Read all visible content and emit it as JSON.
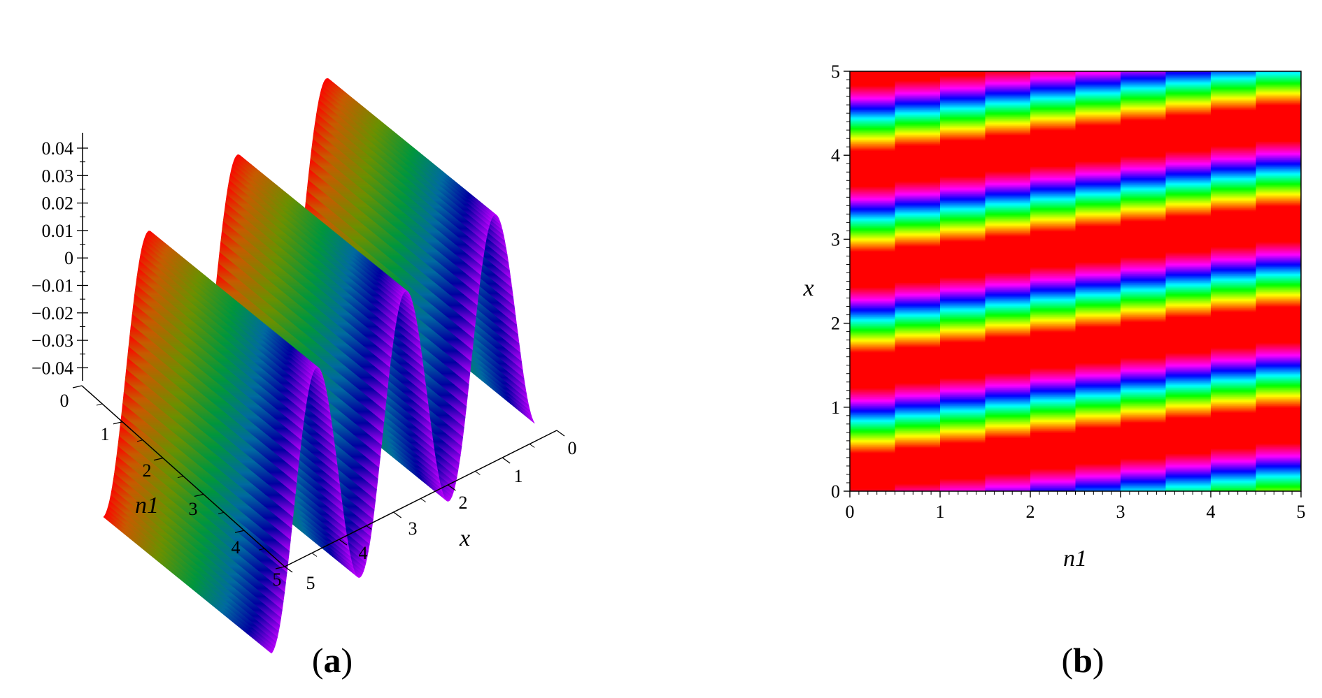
{
  "panels": [
    {
      "label_open": "(",
      "label_letter": "a",
      "label_close": ")"
    },
    {
      "label_open": "(",
      "label_letter": "b",
      "label_close": ")"
    }
  ],
  "chart_data": [
    {
      "type": "surface-3d",
      "xlabel": "x",
      "ylabel": "n1",
      "zlabel": "",
      "x_ticks": [
        "0",
        "1",
        "2",
        "3",
        "4",
        "5"
      ],
      "y_ticks": [
        "0",
        "1",
        "2",
        "3",
        "4",
        "5"
      ],
      "z_ticks": [
        "0.04",
        "0.03",
        "0.02",
        "0.01",
        "0",
        "−0.01",
        "−0.02",
        "−0.03",
        "−0.04"
      ],
      "xlim": [
        0,
        5
      ],
      "ylim": [
        0,
        5
      ],
      "zlim": [
        -0.045,
        0.045
      ],
      "amplitude": 0.045,
      "period_in_x": 1.2,
      "colormap": [
        "#ff0000",
        "#c86400",
        "#7a9a00",
        "#009a3c",
        "#0000a0",
        "#c000ff"
      ]
    },
    {
      "type": "heatmap",
      "xlabel": "n1",
      "ylabel": "x",
      "x_ticks": [
        "0",
        "1",
        "2",
        "3",
        "4",
        "5"
      ],
      "y_ticks": [
        "0",
        "1",
        "2",
        "3",
        "4",
        "5"
      ],
      "xlim": [
        0,
        5
      ],
      "ylim": [
        0,
        5
      ],
      "band_period_in_x": 1.2,
      "band_slope_dx_per_dn1": 0.12,
      "colormap": [
        "#ff0000",
        "#ffff00",
        "#00ff00",
        "#00ffff",
        "#0000ff",
        "#ff00ff",
        "#ff0000"
      ]
    }
  ]
}
